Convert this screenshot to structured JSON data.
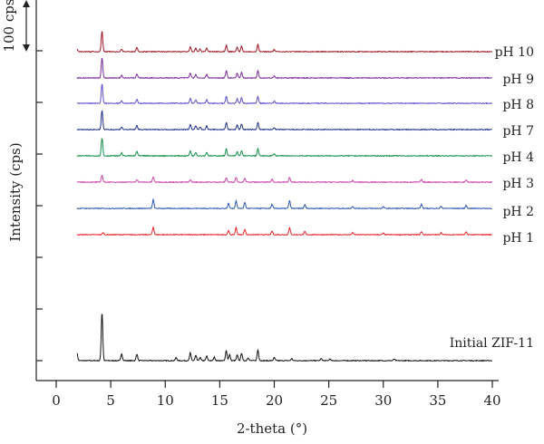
{
  "chart_data": {
    "type": "line",
    "xlabel": "2-theta (°)",
    "ylabel": "Intensity (cps)",
    "xlim": [
      0,
      40
    ],
    "x_ticks": [
      "0",
      "5",
      "10",
      "15",
      "20",
      "25",
      "30",
      "35",
      "40"
    ],
    "scale_bar_label": "100 cps",
    "grid": false,
    "series": [
      {
        "name": "Initial ZIF-11",
        "color": "#111111",
        "peaks": [
          [
            1.9,
            15
          ],
          [
            4.2,
            95
          ],
          [
            6.0,
            14
          ],
          [
            7.4,
            13
          ],
          [
            11.0,
            6
          ],
          [
            12.3,
            15
          ],
          [
            12.8,
            10
          ],
          [
            13.2,
            6
          ],
          [
            13.8,
            9
          ],
          [
            14.5,
            7
          ],
          [
            15.6,
            20
          ],
          [
            15.9,
            12
          ],
          [
            16.6,
            11
          ],
          [
            17.0,
            15
          ],
          [
            17.6,
            6
          ],
          [
            18.5,
            21
          ],
          [
            20.0,
            6
          ],
          [
            21.6,
            4
          ],
          [
            24.3,
            4
          ],
          [
            25.1,
            3
          ],
          [
            31.0,
            3
          ]
        ]
      },
      {
        "name": "pH 1",
        "color": "#e8262b",
        "peaks": [
          [
            4.3,
            4
          ],
          [
            8.9,
            15
          ],
          [
            15.8,
            8
          ],
          [
            16.5,
            14
          ],
          [
            17.3,
            11
          ],
          [
            19.8,
            7
          ],
          [
            21.4,
            14
          ],
          [
            22.8,
            6
          ],
          [
            27.2,
            4
          ],
          [
            30.0,
            3
          ],
          [
            33.5,
            6
          ],
          [
            35.3,
            4
          ],
          [
            37.6,
            5
          ]
        ]
      },
      {
        "name": "pH 2",
        "color": "#2b58b0",
        "peaks": [
          [
            8.9,
            17
          ],
          [
            15.8,
            10
          ],
          [
            16.5,
            15
          ],
          [
            17.3,
            12
          ],
          [
            19.8,
            8
          ],
          [
            21.4,
            15
          ],
          [
            22.8,
            7
          ],
          [
            27.2,
            4
          ],
          [
            30.0,
            3
          ],
          [
            33.5,
            8
          ],
          [
            35.3,
            4
          ],
          [
            37.6,
            6
          ]
        ]
      },
      {
        "name": "pH 3",
        "color": "#cc44aa",
        "peaks": [
          [
            4.2,
            14
          ],
          [
            7.4,
            5
          ],
          [
            8.9,
            10
          ],
          [
            12.3,
            5
          ],
          [
            15.6,
            9
          ],
          [
            16.5,
            10
          ],
          [
            17.3,
            8
          ],
          [
            19.8,
            6
          ],
          [
            21.4,
            9
          ],
          [
            27.2,
            3
          ],
          [
            33.5,
            5
          ],
          [
            37.6,
            4
          ]
        ]
      },
      {
        "name": "pH 4",
        "color": "#14904a",
        "peaks": [
          [
            4.2,
            35
          ],
          [
            6.0,
            6
          ],
          [
            7.4,
            9
          ],
          [
            12.3,
            10
          ],
          [
            12.8,
            7
          ],
          [
            13.8,
            7
          ],
          [
            15.6,
            14
          ],
          [
            16.6,
            8
          ],
          [
            17.0,
            10
          ],
          [
            18.5,
            14
          ],
          [
            20.0,
            4
          ]
        ]
      },
      {
        "name": "pH 7",
        "color": "#1f2f88",
        "peaks": [
          [
            4.2,
            38
          ],
          [
            6.0,
            5
          ],
          [
            7.4,
            8
          ],
          [
            12.3,
            10
          ],
          [
            12.8,
            7
          ],
          [
            13.2,
            5
          ],
          [
            13.8,
            7
          ],
          [
            15.6,
            14
          ],
          [
            16.6,
            9
          ],
          [
            17.0,
            11
          ],
          [
            18.5,
            14
          ],
          [
            20.0,
            4
          ]
        ]
      },
      {
        "name": "pH 8",
        "color": "#5a4fc8",
        "peaks": [
          [
            4.2,
            38
          ],
          [
            6.0,
            5
          ],
          [
            7.4,
            8
          ],
          [
            12.3,
            10
          ],
          [
            12.8,
            7
          ],
          [
            13.8,
            7
          ],
          [
            15.6,
            14
          ],
          [
            16.6,
            9
          ],
          [
            17.0,
            11
          ],
          [
            18.5,
            14
          ],
          [
            20.0,
            4
          ]
        ]
      },
      {
        "name": "pH 9",
        "color": "#7b2a9c",
        "peaks": [
          [
            4.2,
            40
          ],
          [
            6.0,
            5
          ],
          [
            7.4,
            8
          ],
          [
            12.3,
            10
          ],
          [
            12.8,
            7
          ],
          [
            13.8,
            7
          ],
          [
            15.6,
            14
          ],
          [
            16.6,
            9
          ],
          [
            17.0,
            11
          ],
          [
            18.5,
            14
          ],
          [
            20.0,
            4
          ]
        ]
      },
      {
        "name": "pH 10",
        "color": "#9c1624",
        "peaks": [
          [
            1.9,
            5
          ],
          [
            4.2,
            40
          ],
          [
            6.0,
            5
          ],
          [
            7.4,
            8
          ],
          [
            12.3,
            10
          ],
          [
            12.8,
            7
          ],
          [
            13.2,
            5
          ],
          [
            13.8,
            7
          ],
          [
            15.6,
            13
          ],
          [
            16.6,
            9
          ],
          [
            17.0,
            11
          ],
          [
            18.5,
            14
          ],
          [
            20.0,
            4
          ]
        ]
      }
    ]
  }
}
